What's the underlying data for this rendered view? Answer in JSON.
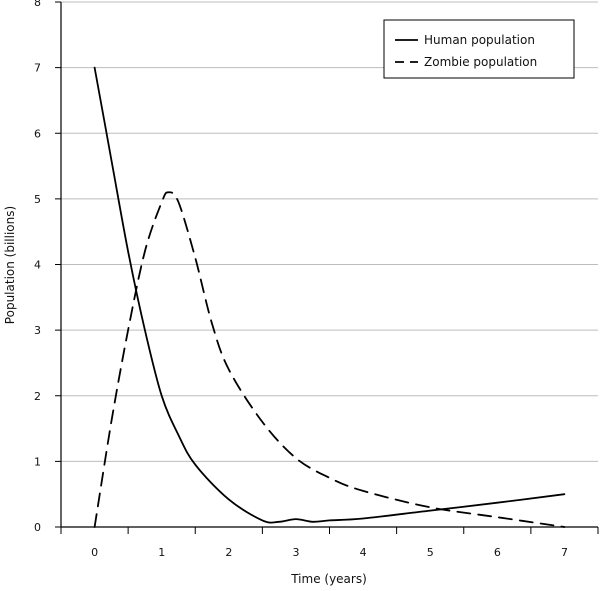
{
  "chart_data": {
    "type": "line",
    "title": "",
    "xlabel": "Time (years)",
    "ylabel": "Population (billions)",
    "xlim": [
      -0.5,
      7.5
    ],
    "ylim": [
      0,
      8
    ],
    "x_ticks": [
      "0",
      "1",
      "2",
      "3",
      "4",
      "5",
      "6",
      "7"
    ],
    "y_ticks": [
      "0",
      "1",
      "2",
      "3",
      "4",
      "5",
      "6",
      "7",
      "8"
    ],
    "grid": "horizontal",
    "legend_position": "top-right",
    "series": [
      {
        "name": "Human population",
        "style": "solid",
        "color": "#000000",
        "x": [
          0,
          0.25,
          0.5,
          0.75,
          1.0,
          1.25,
          1.5,
          2.0,
          2.5,
          2.75,
          3.0,
          3.25,
          3.5,
          4.0,
          5.0,
          6.0,
          7.0
        ],
        "y": [
          7.0,
          5.6,
          4.2,
          3.0,
          2.0,
          1.4,
          0.95,
          0.42,
          0.1,
          0.08,
          0.12,
          0.08,
          0.1,
          0.13,
          0.25,
          0.37,
          0.5
        ]
      },
      {
        "name": "Zombie population",
        "style": "dashed",
        "color": "#000000",
        "x": [
          0,
          0.25,
          0.5,
          0.75,
          1.0,
          1.1,
          1.25,
          1.5,
          1.75,
          2.0,
          2.5,
          3.0,
          3.5,
          4.0,
          5.0,
          6.0,
          7.0
        ],
        "y": [
          0,
          1.6,
          3.0,
          4.2,
          4.95,
          5.1,
          4.95,
          4.1,
          3.1,
          2.4,
          1.6,
          1.05,
          0.75,
          0.55,
          0.3,
          0.15,
          0.0
        ]
      }
    ]
  }
}
